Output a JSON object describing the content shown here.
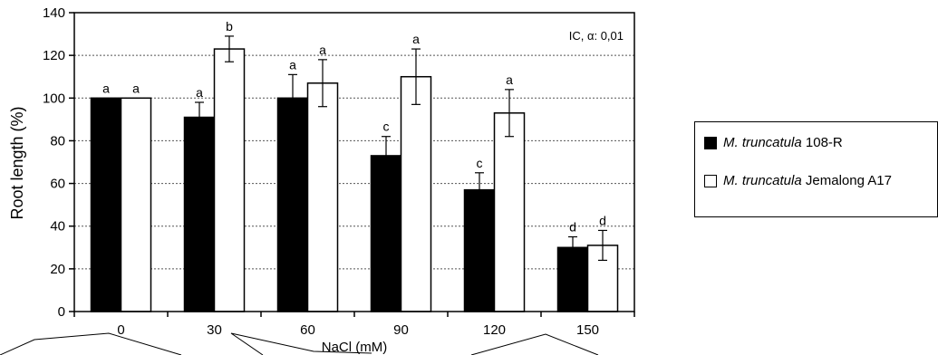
{
  "chart_data": {
    "type": "bar",
    "categories": [
      "0",
      "30",
      "60",
      "90",
      "120",
      "150"
    ],
    "xlabel": "NaCl (mM)",
    "ylabel": "Root length (%)",
    "ylim": [
      0,
      140
    ],
    "yticks": [
      "0",
      "20",
      "40",
      "60",
      "80",
      "100",
      "120",
      "140"
    ],
    "grid": "horizontal dotted",
    "annotation": "IC, α: 0,01",
    "legend_position": "right",
    "series": [
      {
        "name_italic": "M. truncatula",
        "name_rest": "108-R",
        "fill": "#000000",
        "values": [
          100,
          91,
          100,
          73,
          57,
          30
        ],
        "errors": [
          0,
          7,
          11,
          9,
          8,
          5
        ],
        "letters": [
          "a",
          "a",
          "a",
          "c",
          "c",
          "d"
        ]
      },
      {
        "name_italic": "M. truncatula",
        "name_rest": "Jemalong A17",
        "fill": "#ffffff",
        "values": [
          100,
          123,
          107,
          110,
          93,
          31
        ],
        "errors": [
          0,
          6,
          11,
          13,
          11,
          7
        ],
        "letters": [
          "a",
          "b",
          "a",
          "a",
          "a",
          "d"
        ]
      }
    ]
  }
}
